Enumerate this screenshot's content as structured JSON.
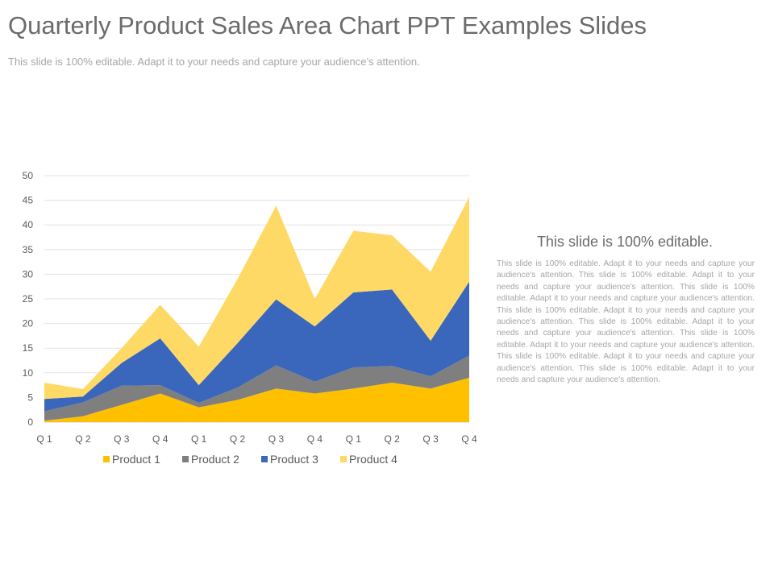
{
  "slide": {
    "title": "Quarterly Product Sales Area Chart PPT Examples Slides",
    "subtitle": "This slide is 100% editable. Adapt it to your needs and capture your audience’s attention."
  },
  "side_panel": {
    "heading": "This slide is 100% editable.",
    "body": "This slide is 100% editable. Adapt it to your needs and capture your audience's attention. This slide is 100% editable. Adapt it to your needs and capture your audience's attention. This slide is 100% editable. Adapt it to your needs and capture your audience's attention. This slide is 100% editable. Adapt it to your needs and capture your audience's attention. This slide is 100% editable. Adapt it to your needs and capture your audience's attention. This slide is 100% editable. Adapt it to your needs and capture your audience's attention. This slide is 100% editable. Adapt it to your needs and capture your audience's attention. This slide is 100% editable. Adapt it to your needs and capture your audience's attention."
  },
  "chart_data": {
    "type": "area",
    "stacked": true,
    "title": "",
    "xlabel": "",
    "ylabel": "",
    "categories": [
      "Q 1",
      "Q 2",
      "Q 3",
      "Q 4",
      "Q 1",
      "Q 2",
      "Q 3",
      "Q 4",
      "Q 1",
      "Q 2",
      "Q 3",
      "Q 4"
    ],
    "ylim": [
      0,
      50
    ],
    "yticks": [
      0,
      5,
      10,
      15,
      20,
      25,
      30,
      35,
      40,
      45,
      50
    ],
    "grid": true,
    "legend_position": "bottom",
    "series": [
      {
        "name": "Product 1",
        "color": "#FFC000",
        "values": [
          0.3,
          1.2,
          3.5,
          5.8,
          3.0,
          4.5,
          6.8,
          5.8,
          6.8,
          8.0,
          6.8,
          9.0
        ]
      },
      {
        "name": "Product 2",
        "color": "#7F7F7F",
        "values": [
          1.9,
          2.8,
          3.9,
          1.7,
          0.9,
          2.5,
          4.7,
          2.4,
          4.3,
          3.4,
          2.5,
          4.5
        ]
      },
      {
        "name": "Product 3",
        "color": "#3A66BC",
        "values": [
          2.5,
          1.2,
          4.6,
          9.5,
          3.6,
          9.0,
          13.4,
          11.2,
          15.2,
          15.5,
          7.2,
          15.0
        ]
      },
      {
        "name": "Product 4",
        "color": "#FFD966",
        "values": [
          3.3,
          1.5,
          3.0,
          6.8,
          7.8,
          13.0,
          19.0,
          5.6,
          12.5,
          11.0,
          14.0,
          17.2
        ]
      }
    ]
  }
}
